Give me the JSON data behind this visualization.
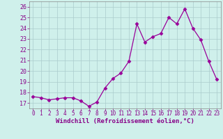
{
  "x": [
    0,
    1,
    2,
    3,
    4,
    5,
    6,
    7,
    8,
    9,
    10,
    11,
    12,
    13,
    14,
    15,
    16,
    17,
    18,
    19,
    20,
    21,
    22,
    23
  ],
  "y": [
    17.6,
    17.5,
    17.3,
    17.4,
    17.5,
    17.5,
    17.2,
    16.7,
    17.1,
    18.4,
    19.3,
    19.8,
    20.9,
    24.4,
    22.7,
    23.2,
    23.5,
    25.0,
    24.4,
    25.8,
    24.0,
    22.9,
    20.9,
    19.2
  ],
  "line_color": "#990099",
  "marker": "D",
  "marker_size": 2.5,
  "bg_color": "#cff0eb",
  "grid_color": "#aacccc",
  "xlabel": "Windchill (Refroidissement éolien,°C)",
  "ylabel_ticks": [
    17,
    18,
    19,
    20,
    21,
    22,
    23,
    24,
    25,
    26
  ],
  "xlim": [
    -0.5,
    23.5
  ],
  "ylim": [
    16.5,
    26.5
  ],
  "xticks": [
    0,
    1,
    2,
    3,
    4,
    5,
    6,
    7,
    8,
    9,
    10,
    11,
    12,
    13,
    14,
    15,
    16,
    17,
    18,
    19,
    20,
    21,
    22,
    23
  ],
  "label_color": "#880088",
  "tick_color": "#880088",
  "tick_fontsize": 5.5,
  "xlabel_fontsize": 6.5,
  "spine_color": "#888888"
}
